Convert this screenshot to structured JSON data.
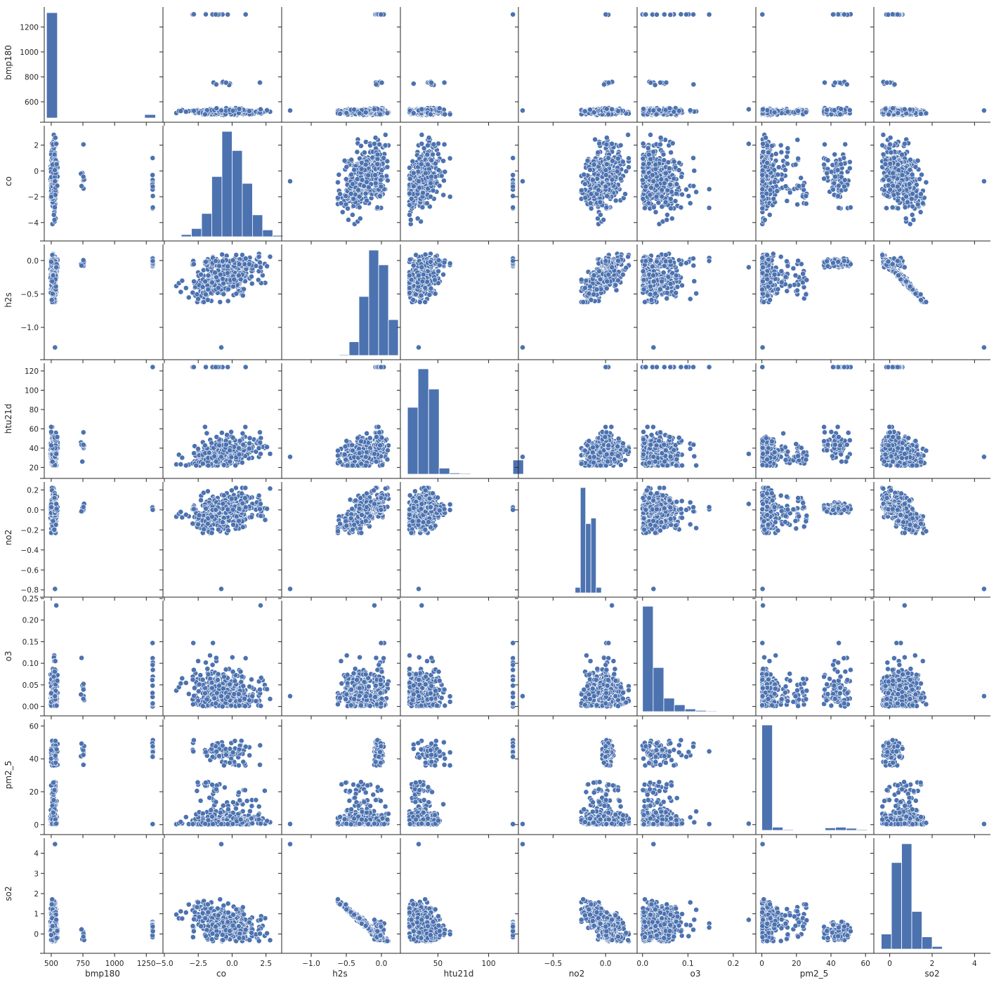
{
  "chart_data": {
    "type": "scatter",
    "colors": {
      "marker": "#4c72b0",
      "axis": "#262626",
      "background": "#ffffff"
    },
    "variables": [
      "bmp180",
      "co",
      "h2s",
      "htu21d",
      "no2",
      "o3",
      "pm2_5",
      "so2"
    ],
    "axes": {
      "bmp180": {
        "range": [
          445,
          1365
        ],
        "ticks": [
          500,
          750,
          1000,
          1250
        ],
        "ytick_range": [
          470,
          1360
        ],
        "yticks": [
          600,
          800,
          1000,
          1200
        ]
      },
      "co": {
        "range": [
          -5.1,
          3.5
        ],
        "ticks": [
          -5.0,
          -2.5,
          0.0,
          2.5
        ],
        "yticks": [
          -4,
          -2,
          0,
          2
        ]
      },
      "h2s": {
        "range": [
          -1.42,
          0.24
        ],
        "ticks": [
          -1.0,
          -0.5,
          0.0
        ],
        "yticks": [
          -1.0,
          -0.5,
          0.0
        ]
      },
      "htu21d": {
        "range": [
          13,
          128
        ],
        "ticks": [
          50,
          100
        ],
        "yticks": [
          20,
          40,
          60,
          80,
          100,
          120
        ]
      },
      "no2": {
        "range": [
          -0.83,
          0.28
        ],
        "ticks": [
          -0.5,
          0.0
        ],
        "yticks": [
          -0.8,
          -0.6,
          -0.4,
          -0.2,
          0.0,
          0.2
        ]
      },
      "o3": {
        "range": [
          -0.012,
          0.245
        ],
        "ticks": [
          0.0,
          0.1,
          0.2
        ],
        "yticks": [
          0.0,
          0.05,
          0.1,
          0.15,
          0.2,
          0.25
        ]
      },
      "pm2_5": {
        "range": [
          -3.5,
          64
        ],
        "ticks": [
          0,
          20,
          40,
          60
        ],
        "yticks": [
          0,
          20,
          40,
          60
        ]
      },
      "so2": {
        "range": [
          -0.75,
          4.75
        ],
        "ticks": [
          0,
          2,
          4
        ],
        "yticks": [
          0,
          1,
          2,
          3,
          4
        ]
      }
    },
    "tick_labels": {
      "bmp180": [
        "500",
        "750",
        "1000",
        "1250"
      ],
      "bmp180_y": [
        "600",
        "800",
        "1000",
        "1200"
      ],
      "co": [
        "−5.0",
        "−2.5",
        "0.0",
        "2.5"
      ],
      "co_y": [
        "−4",
        "−2",
        "0",
        "2"
      ],
      "h2s": [
        "−1.0",
        "−0.5",
        "0.0"
      ],
      "h2s_y": [
        "−1.0",
        "−0.5",
        "0.0"
      ],
      "htu21d": [
        "50",
        "100"
      ],
      "htu21d_y": [
        "20",
        "40",
        "60",
        "80",
        "100",
        "120"
      ],
      "no2": [
        "−0.5",
        "0.0"
      ],
      "no2_y": [
        "−0.8",
        "−0.6",
        "−0.4",
        "−0.2",
        "0.0",
        "0.2"
      ],
      "o3": [
        "0.0",
        "0.1",
        "0.2"
      ],
      "o3_y": [
        "0.00",
        "0.05",
        "0.10",
        "0.15",
        "0.20",
        "0.25"
      ],
      "pm2_5": [
        "0",
        "20",
        "40",
        "60"
      ],
      "pm2_5_y": [
        "0",
        "20",
        "40",
        "60"
      ],
      "so2": [
        "0",
        "2",
        "4"
      ],
      "so2_y": [
        "0",
        "1",
        "2",
        "3",
        "4"
      ]
    },
    "histograms": {
      "bmp180": {
        "start": 463,
        "width": 86,
        "counts": [
          1000,
          0,
          0,
          0,
          0,
          1,
          1,
          0,
          0,
          33
        ]
      },
      "co": {
        "start": -4.5,
        "width": 0.75,
        "counts": [
          2,
          16,
          60,
          170,
          440,
          770,
          630,
          390,
          160,
          50,
          10,
          4
        ]
      },
      "h2s": {
        "start": -1.3,
        "width": 0.14,
        "counts": [
          1,
          0,
          0,
          0,
          0,
          8,
          130,
          560,
          1000,
          860,
          340
        ]
      },
      "htu21d": {
        "start": 20,
        "width": 10.4,
        "counts": [
          330,
          520,
          420,
          30,
          6,
          4,
          0,
          0,
          0,
          0,
          70
        ]
      },
      "no2": {
        "start": -0.29,
        "width": 0.05,
        "counts": [
          20,
          380,
          250,
          270,
          20
        ]
      },
      "o3": {
        "start": 0.0,
        "width": 0.0234,
        "counts": [
          430,
          180,
          55,
          28,
          11,
          5,
          3,
          1,
          1,
          1
        ]
      },
      "pm2_5": {
        "start": 0,
        "width": 6.1,
        "counts": [
          1000,
          30,
          8,
          4,
          2,
          4,
          24,
          30,
          20,
          8
        ]
      },
      "so2": {
        "start": -0.4,
        "width": 0.48,
        "counts": [
          80,
          460,
          560,
          200,
          65,
          14,
          3,
          1,
          1,
          2
        ]
      }
    },
    "title": "",
    "xlabel": "",
    "ylabel": ""
  }
}
